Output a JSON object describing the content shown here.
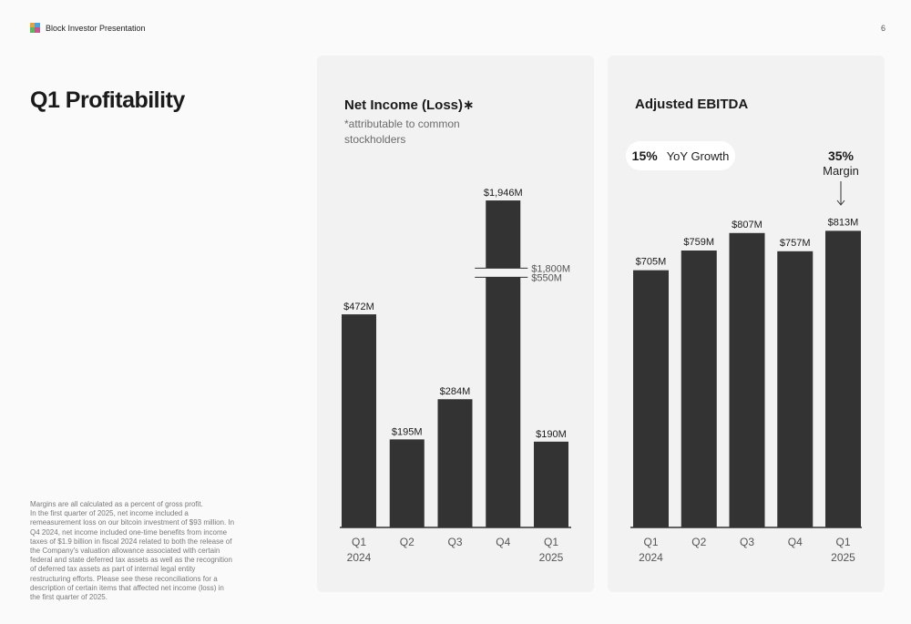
{
  "header": {
    "title": "Block Investor Presentation",
    "page_number": "6"
  },
  "slide_title": "Q1 Profitability",
  "footnote": [
    "Margins are all calculated as a percent of gross profit.",
    "In the first quarter of 2025, net income included a remeasurement loss on our bitcoin investment of $93 million. In Q4 2024, net income included one-time benefits from income taxes of $1.9 billion in fiscal 2024 related to both the release of the Company's valuation allowance associated with certain federal and state deferred tax assets as well as the recognition of deferred tax assets as part of internal legal entity restructuring efforts. Please see these reconciliations for a description of certain items that affected net income (loss) in the first quarter of 2025."
  ],
  "net_income": {
    "title": "Net Income (Loss)",
    "title_marker": "∗",
    "subtitle": "*attributable to common stockholders",
    "axis_break": {
      "upper_label": "$1,800M",
      "lower_label": "$550M",
      "upper": 1800,
      "lower": 550
    }
  },
  "ebitda": {
    "title": "Adjusted EBITDA",
    "growth_value": "15%",
    "growth_label": "YoY Growth",
    "margin_value": "35%",
    "margin_label": "Margin"
  },
  "colors": {
    "bar": "#333333",
    "panel": "#f2f2f2",
    "axis": "#333333"
  },
  "chart_data": [
    {
      "type": "bar",
      "title": "Net Income (Loss)",
      "categories": [
        "Q1\n2024",
        "Q2",
        "Q3",
        "Q4",
        "Q1\n2025"
      ],
      "values": [
        472,
        195,
        284,
        1946,
        190
      ],
      "data_labels": [
        "$472M",
        "$195M",
        "$284M",
        "$1,946M",
        "$190M"
      ],
      "broken_axis": [
        550,
        1800
      ],
      "xlabel": "",
      "ylabel": "",
      "grid": false
    },
    {
      "type": "bar",
      "title": "Adjusted EBITDA",
      "categories": [
        "Q1\n2024",
        "Q2",
        "Q3",
        "Q4",
        "Q1\n2025"
      ],
      "values": [
        705,
        759,
        807,
        757,
        813
      ],
      "data_labels": [
        "$705M",
        "$759M",
        "$807M",
        "$757M",
        "$813M"
      ],
      "xlabel": "",
      "ylabel": "",
      "grid": false
    }
  ]
}
